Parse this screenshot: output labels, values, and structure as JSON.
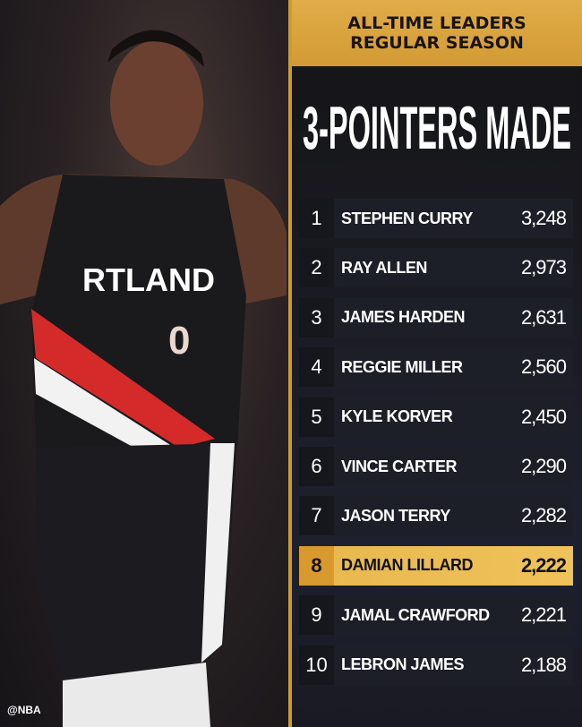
{
  "header": {
    "line1": "ALL-TIME LEADERS",
    "line2": "REGULAR SEASON"
  },
  "title": "3-POINTERS MADE",
  "highlight_color": "#e7b84e",
  "photo": {
    "jersey_text": "RTLAND",
    "jersey_number": "0",
    "watermark": "@NBA"
  },
  "leaders": [
    {
      "rank": "1",
      "name": "STEPHEN CURRY",
      "value": "3,248"
    },
    {
      "rank": "2",
      "name": "RAY ALLEN",
      "value": "2,973"
    },
    {
      "rank": "3",
      "name": "JAMES HARDEN",
      "value": "2,631"
    },
    {
      "rank": "4",
      "name": "REGGIE MILLER",
      "value": "2,560"
    },
    {
      "rank": "5",
      "name": "KYLE KORVER",
      "value": "2,450"
    },
    {
      "rank": "6",
      "name": "VINCE CARTER",
      "value": "2,290"
    },
    {
      "rank": "7",
      "name": "JASON TERRY",
      "value": "2,282"
    },
    {
      "rank": "8",
      "name": "DAMIAN LILLARD",
      "value": "2,222",
      "highlighted": true
    },
    {
      "rank": "9",
      "name": "JAMAL CRAWFORD",
      "value": "2,221"
    },
    {
      "rank": "10",
      "name": "LEBRON JAMES",
      "value": "2,188"
    }
  ]
}
